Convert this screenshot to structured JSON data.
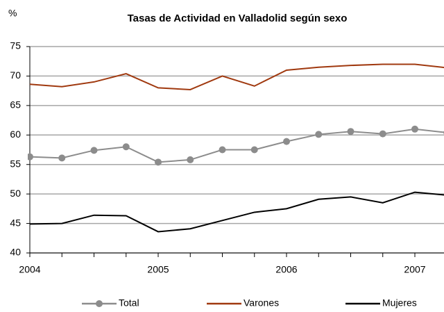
{
  "chart_data": {
    "type": "line",
    "title": "Tasas de Actividad en Valladolid según sexo",
    "ylabel": "%",
    "categories": [
      "2004",
      null,
      null,
      null,
      "2005",
      null,
      null,
      null,
      "2006",
      null,
      null,
      null,
      "2007",
      null
    ],
    "series": [
      {
        "name": "Total",
        "color": "#8c8c8c",
        "marker": true,
        "values": [
          56.3,
          56.1,
          57.4,
          58.0,
          55.4,
          55.8,
          57.5,
          57.5,
          58.9,
          60.1,
          60.6,
          60.2,
          61.0,
          60.4
        ]
      },
      {
        "name": "Varones",
        "color": "#a0390f",
        "marker": false,
        "values": [
          68.6,
          68.2,
          69.0,
          70.4,
          68.0,
          67.7,
          70.0,
          68.3,
          71.0,
          71.5,
          71.8,
          72.0,
          72.0,
          71.4
        ]
      },
      {
        "name": "Mujeres",
        "color": "#000000",
        "marker": false,
        "values": [
          44.9,
          45.0,
          46.4,
          46.3,
          43.6,
          44.1,
          45.5,
          46.9,
          47.5,
          49.1,
          49.5,
          48.5,
          50.3,
          49.8
        ]
      }
    ],
    "ylim": [
      40,
      75
    ],
    "yticks": [
      40,
      45,
      50,
      55,
      60,
      65,
      70,
      75
    ],
    "grid": true,
    "legend": "bottom"
  }
}
